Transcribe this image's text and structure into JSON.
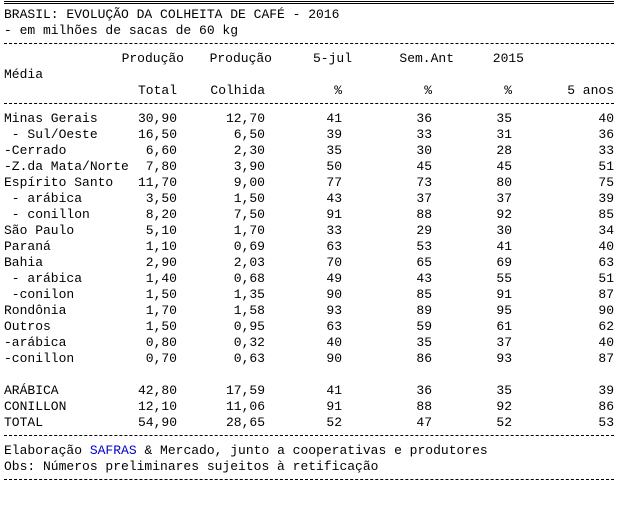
{
  "title": "BRASIL: EVOLUÇÃO DA COLHEITA DE CAFÉ - 2016",
  "subtitle": "- em milhões de sacas de 60 kg",
  "header": {
    "row1": [
      "Produção",
      "Produção",
      "5-jul",
      "Sem.Ant",
      "2015"
    ],
    "row2_label": "Média",
    "row3": [
      "Total",
      "Colhida",
      "%",
      "%",
      "%",
      "5 anos"
    ]
  },
  "rows": [
    {
      "name": "Minas Gerais",
      "total": "30,90",
      "colhida": "12,70",
      "jul": "41",
      "sem": "36",
      "y2015": "35",
      "media": "40"
    },
    {
      "name": " - Sul/Oeste",
      "total": "16,50",
      "colhida": "6,50",
      "jul": "39",
      "sem": "33",
      "y2015": "31",
      "media": "36"
    },
    {
      "name": "-Cerrado",
      "total": "6,60",
      "colhida": "2,30",
      "jul": "35",
      "sem": "30",
      "y2015": "28",
      "media": "33"
    },
    {
      "name": "-Z.da Mata/Norte",
      "total": "7,80",
      "colhida": "3,90",
      "jul": "50",
      "sem": "45",
      "y2015": "45",
      "media": "51"
    },
    {
      "name": "Espírito Santo",
      "total": "11,70",
      "colhida": "9,00",
      "jul": "77",
      "sem": "73",
      "y2015": "80",
      "media": "75"
    },
    {
      "name": " - arábica",
      "total": "3,50",
      "colhida": "1,50",
      "jul": "43",
      "sem": "37",
      "y2015": "37",
      "media": "39"
    },
    {
      "name": " - conillon",
      "total": "8,20",
      "colhida": "7,50",
      "jul": "91",
      "sem": "88",
      "y2015": "92",
      "media": "85"
    },
    {
      "name": "São Paulo",
      "total": "5,10",
      "colhida": "1,70",
      "jul": "33",
      "sem": "29",
      "y2015": "30",
      "media": "34"
    },
    {
      "name": "Paraná",
      "total": "1,10",
      "colhida": "0,69",
      "jul": "63",
      "sem": "53",
      "y2015": "41",
      "media": "40"
    },
    {
      "name": "Bahia",
      "total": "2,90",
      "colhida": "2,03",
      "jul": "70",
      "sem": "65",
      "y2015": "69",
      "media": "63"
    },
    {
      "name": " - arábica",
      "total": "1,40",
      "colhida": "0,68",
      "jul": "49",
      "sem": "43",
      "y2015": "55",
      "media": "51"
    },
    {
      "name": " -conilon",
      "total": "1,50",
      "colhida": "1,35",
      "jul": "90",
      "sem": "85",
      "y2015": "91",
      "media": "87"
    },
    {
      "name": "Rondônia",
      "total": "1,70",
      "colhida": "1,58",
      "jul": "93",
      "sem": "89",
      "y2015": "95",
      "media": "90"
    },
    {
      "name": "Outros",
      "total": "1,50",
      "colhida": "0,95",
      "jul": "63",
      "sem": "59",
      "y2015": "61",
      "media": "62"
    },
    {
      "name": "-arábica",
      "total": "0,80",
      "colhida": "0,32",
      "jul": "40",
      "sem": "35",
      "y2015": "37",
      "media": "40"
    },
    {
      "name": "-conillon",
      "total": "0,70",
      "colhida": "0,63",
      "jul": "90",
      "sem": "86",
      "y2015": "93",
      "media": "87"
    }
  ],
  "totals": [
    {
      "name": "ARÁBICA",
      "total": "42,80",
      "colhida": "17,59",
      "jul": "41",
      "sem": "36",
      "y2015": "35",
      "media": "39"
    },
    {
      "name": "CONILLON",
      "total": "12,10",
      "colhida": "11,06",
      "jul": "91",
      "sem": "88",
      "y2015": "92",
      "media": "86"
    },
    {
      "name": "TOTAL",
      "total": "54,90",
      "colhida": "28,65",
      "jul": "52",
      "sem": "47",
      "y2015": "52",
      "media": "53"
    }
  ],
  "footer": {
    "elab_prefix": "Elaboração ",
    "elab_brand": "SAFRAS",
    "elab_suffix": " & Mercado, junto a cooperativas e produtores",
    "obs": "Obs: Números preliminares sujeitos à retificação"
  },
  "colors": {
    "text": "#000000",
    "brand": "#0000cc",
    "background": "#ffffff"
  }
}
